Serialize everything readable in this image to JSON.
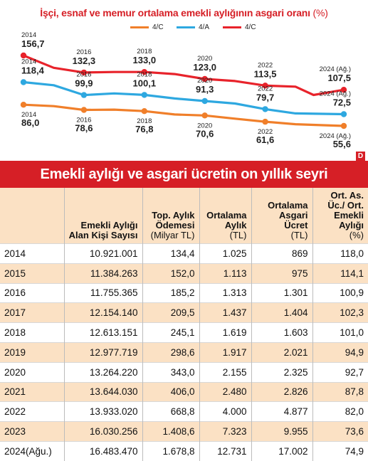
{
  "chart_data": {
    "type": "line",
    "title": "İşçi, esnaf ve memur ortalama emekli aylığının asgari oranı",
    "title_unit": "(%)",
    "x": [
      "2014",
      "2016",
      "2018",
      "2020",
      "2022",
      "2024 (Ağ.)"
    ],
    "x_years": [
      2014,
      2016,
      2018,
      2020,
      2022,
      2024.6
    ],
    "series": [
      {
        "name": "4/C",
        "color": "#e8232b",
        "values": [
          156.7,
          132.3,
          133.0,
          123.0,
          113.5,
          107.5
        ],
        "path": [
          [
            2014,
            156.7
          ],
          [
            2015,
            139
          ],
          [
            2016,
            132.3
          ],
          [
            2017,
            133.0
          ],
          [
            2018,
            133.0
          ],
          [
            2019,
            130
          ],
          [
            2020,
            123.0
          ],
          [
            2021,
            120
          ],
          [
            2022,
            113.5
          ],
          [
            2023,
            112
          ],
          [
            2023.6,
            100
          ],
          [
            2024.6,
            107.5
          ]
        ]
      },
      {
        "name": "4/A",
        "color": "#2ea8e0",
        "values": [
          118.4,
          99.9,
          100.1,
          91.3,
          79.7,
          72.5
        ],
        "path": [
          [
            2014,
            118.4
          ],
          [
            2015,
            114
          ],
          [
            2016,
            99.9
          ],
          [
            2017,
            102.3
          ],
          [
            2018,
            100.1
          ],
          [
            2019,
            95
          ],
          [
            2020,
            91.3
          ],
          [
            2021,
            87.8
          ],
          [
            2022,
            79.7
          ],
          [
            2023,
            73.6
          ],
          [
            2024.6,
            72.5
          ]
        ]
      },
      {
        "name": "4/C",
        "color": "#f07f2a",
        "values": [
          86.0,
          78.6,
          76.8,
          70.6,
          61.6,
          55.6
        ],
        "path": [
          [
            2014,
            86.0
          ],
          [
            2015,
            84
          ],
          [
            2016,
            78.6
          ],
          [
            2017,
            79
          ],
          [
            2018,
            76.8
          ],
          [
            2019,
            72
          ],
          [
            2020,
            70.6
          ],
          [
            2021,
            66
          ],
          [
            2022,
            61.6
          ],
          [
            2023,
            58
          ],
          [
            2024.6,
            55.6
          ]
        ]
      }
    ],
    "value_labels": [
      [
        "156,7",
        "132,3",
        "133,0",
        "123,0",
        "113,5",
        "107,5"
      ],
      [
        "118,4",
        "99,9",
        "100,1",
        "91,3",
        "79,7",
        "72,5"
      ],
      [
        "86,0",
        "78,6",
        "76,8",
        "70,6",
        "61,6",
        "55,6"
      ]
    ],
    "legend_order": [
      2,
      1,
      0
    ],
    "legend_placement": "top",
    "ylim": [
      50,
      160
    ],
    "grid": false
  },
  "brand_mark": "D",
  "table_title": "Emekli aylığı ve asgari ücretin on yıllık seyri",
  "table": {
    "headers": [
      {
        "main": "",
        "unit": ""
      },
      {
        "main": "Emekli Aylığı Alan Kişi Sayısı",
        "unit": ""
      },
      {
        "main": "Top. Aylık Ödemesi",
        "unit": "(Milyar TL)"
      },
      {
        "main": "Ortalama Aylık",
        "unit": "(TL)"
      },
      {
        "main": "Ortalama Asgari Ücret",
        "unit": "(TL)"
      },
      {
        "main": "Ort. As. Üc./ Ort. Emekli Aylığı",
        "unit": "(%)"
      }
    ],
    "rows": [
      [
        "2014",
        "10.921.001",
        "134,4",
        "1.025",
        "869",
        "118,0"
      ],
      [
        "2015",
        "11.384.263",
        "152,0",
        "1.113",
        "975",
        "114,1"
      ],
      [
        "2016",
        "11.755.365",
        "185,2",
        "1.313",
        "1.301",
        "100,9"
      ],
      [
        "2017",
        "12.154.140",
        "209,5",
        "1.437",
        "1.404",
        "102,3"
      ],
      [
        "2018",
        "12.613.151",
        "245,1",
        "1.619",
        "1.603",
        "101,0"
      ],
      [
        "2019",
        "12.977.719",
        "298,6",
        "1.917",
        "2.021",
        "94,9"
      ],
      [
        "2020",
        "13.264.220",
        "343,0",
        "2.155",
        "2.325",
        "92,7"
      ],
      [
        "2021",
        "13.644.030",
        "406,0",
        "2.480",
        "2.826",
        "87,8"
      ],
      [
        "2022",
        "13.933.020",
        "668,8",
        "4.000",
        "4.877",
        "82,0"
      ],
      [
        "2023",
        "16.030.256",
        "1.408,6",
        "7.323",
        "9.955",
        "73,6"
      ],
      [
        "2024(Ağu.)",
        "16.483.470",
        "1.678,8",
        "12.731",
        "17.002",
        "74,9"
      ]
    ]
  }
}
